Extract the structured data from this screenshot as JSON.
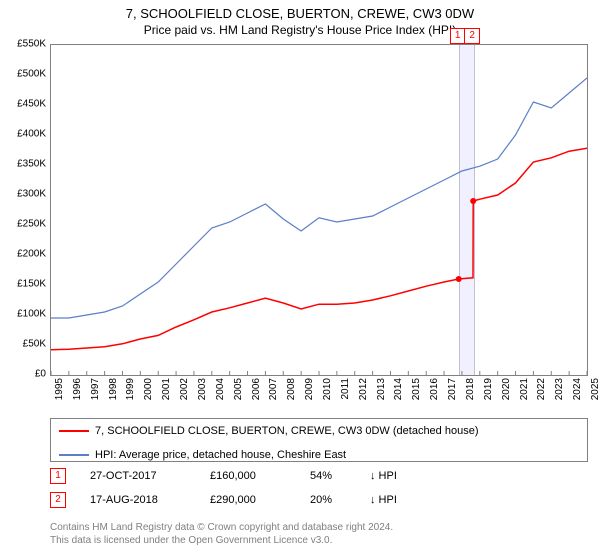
{
  "title": "7, SCHOOLFIELD CLOSE, BUERTON, CREWE, CW3 0DW",
  "subtitle": "Price paid vs. HM Land Registry's House Price Index (HPI)",
  "chart": {
    "type": "line",
    "background_color": "#ffffff",
    "border_color": "#808080",
    "ylim": [
      0,
      550000
    ],
    "ytick_step": 50000,
    "ytick_labels": [
      "£0",
      "£50K",
      "£100K",
      "£150K",
      "£200K",
      "£250K",
      "£300K",
      "£350K",
      "£400K",
      "£450K",
      "£500K",
      "£550K"
    ],
    "xlim": [
      1995,
      2025
    ],
    "xtick_step": 1,
    "xtick_labels": [
      "1995",
      "1996",
      "1997",
      "1998",
      "1999",
      "2000",
      "2001",
      "2002",
      "2003",
      "2004",
      "2005",
      "2006",
      "2007",
      "2008",
      "2009",
      "2010",
      "2011",
      "2012",
      "2013",
      "2014",
      "2015",
      "2016",
      "2017",
      "2018",
      "2019",
      "2020",
      "2021",
      "2022",
      "2023",
      "2024",
      "2025"
    ],
    "highlight_band": {
      "x_start": 2017.82,
      "x_end": 2018.63,
      "fill": "#f0f0ff",
      "border": "#c0c0d0"
    },
    "markers": [
      {
        "id": "1",
        "x": 2017.82,
        "color": "#ff0000"
      },
      {
        "id": "2",
        "x": 2018.63,
        "color": "#ff0000"
      }
    ],
    "series": [
      {
        "name": "property",
        "label": "7, SCHOOLFIELD CLOSE, BUERTON, CREWE, CW3 0DW (detached house)",
        "color": "#ff0000",
        "line_width": 1.5,
        "points_x": [
          1995,
          1996,
          1997,
          1998,
          1999,
          2000,
          2001,
          2002,
          2003,
          2004,
          2005,
          2006,
          2007,
          2008,
          2009,
          2010,
          2011,
          2012,
          2013,
          2014,
          2015,
          2016,
          2017,
          2017.82,
          2018.62,
          2018.63,
          2019,
          2020,
          2021,
          2022,
          2023,
          2024,
          2025
        ],
        "points_y": [
          42000,
          43000,
          45000,
          47000,
          52000,
          60000,
          66000,
          80000,
          92000,
          105000,
          112000,
          120000,
          128000,
          120000,
          110000,
          118000,
          118000,
          120000,
          125000,
          132000,
          140000,
          148000,
          155000,
          160000,
          162000,
          290000,
          293000,
          300000,
          320000,
          355000,
          362000,
          373000,
          378000
        ],
        "dots": [
          {
            "x": 2017.82,
            "y": 160000
          },
          {
            "x": 2018.63,
            "y": 290000
          }
        ]
      },
      {
        "name": "hpi",
        "label": "HPI: Average price, detached house, Cheshire East",
        "color": "#5b7fc7",
        "line_width": 1.2,
        "points_x": [
          1995,
          1996,
          1997,
          1998,
          1999,
          2000,
          2001,
          2002,
          2003,
          2004,
          2005,
          2006,
          2007,
          2008,
          2009,
          2010,
          2011,
          2012,
          2013,
          2014,
          2015,
          2016,
          2017,
          2018,
          2019,
          2020,
          2021,
          2022,
          2023,
          2024,
          2025
        ],
        "points_y": [
          95000,
          95000,
          100000,
          105000,
          115000,
          135000,
          155000,
          185000,
          215000,
          245000,
          255000,
          270000,
          285000,
          260000,
          240000,
          262000,
          255000,
          260000,
          265000,
          280000,
          295000,
          310000,
          325000,
          340000,
          348000,
          360000,
          400000,
          455000,
          445000,
          470000,
          495000
        ]
      }
    ]
  },
  "legend": {
    "border_color": "#808080",
    "rows": [
      {
        "color": "#ff0000",
        "text": "7, SCHOOLFIELD CLOSE, BUERTON, CREWE, CW3 0DW (detached house)"
      },
      {
        "color": "#5b7fc7",
        "text": "HPI: Average price, detached house, Cheshire East"
      }
    ]
  },
  "transactions": [
    {
      "id": "1",
      "date": "27-OCT-2017",
      "price": "£160,000",
      "pct": "54%",
      "dir": "↓",
      "dir_label": "HPI"
    },
    {
      "id": "2",
      "date": "17-AUG-2018",
      "price": "£290,000",
      "pct": "20%",
      "dir": "↓",
      "dir_label": "HPI"
    }
  ],
  "footer": {
    "line1": "Contains HM Land Registry data © Crown copyright and database right 2024.",
    "line2": "This data is licensed under the Open Government Licence v3.0."
  }
}
